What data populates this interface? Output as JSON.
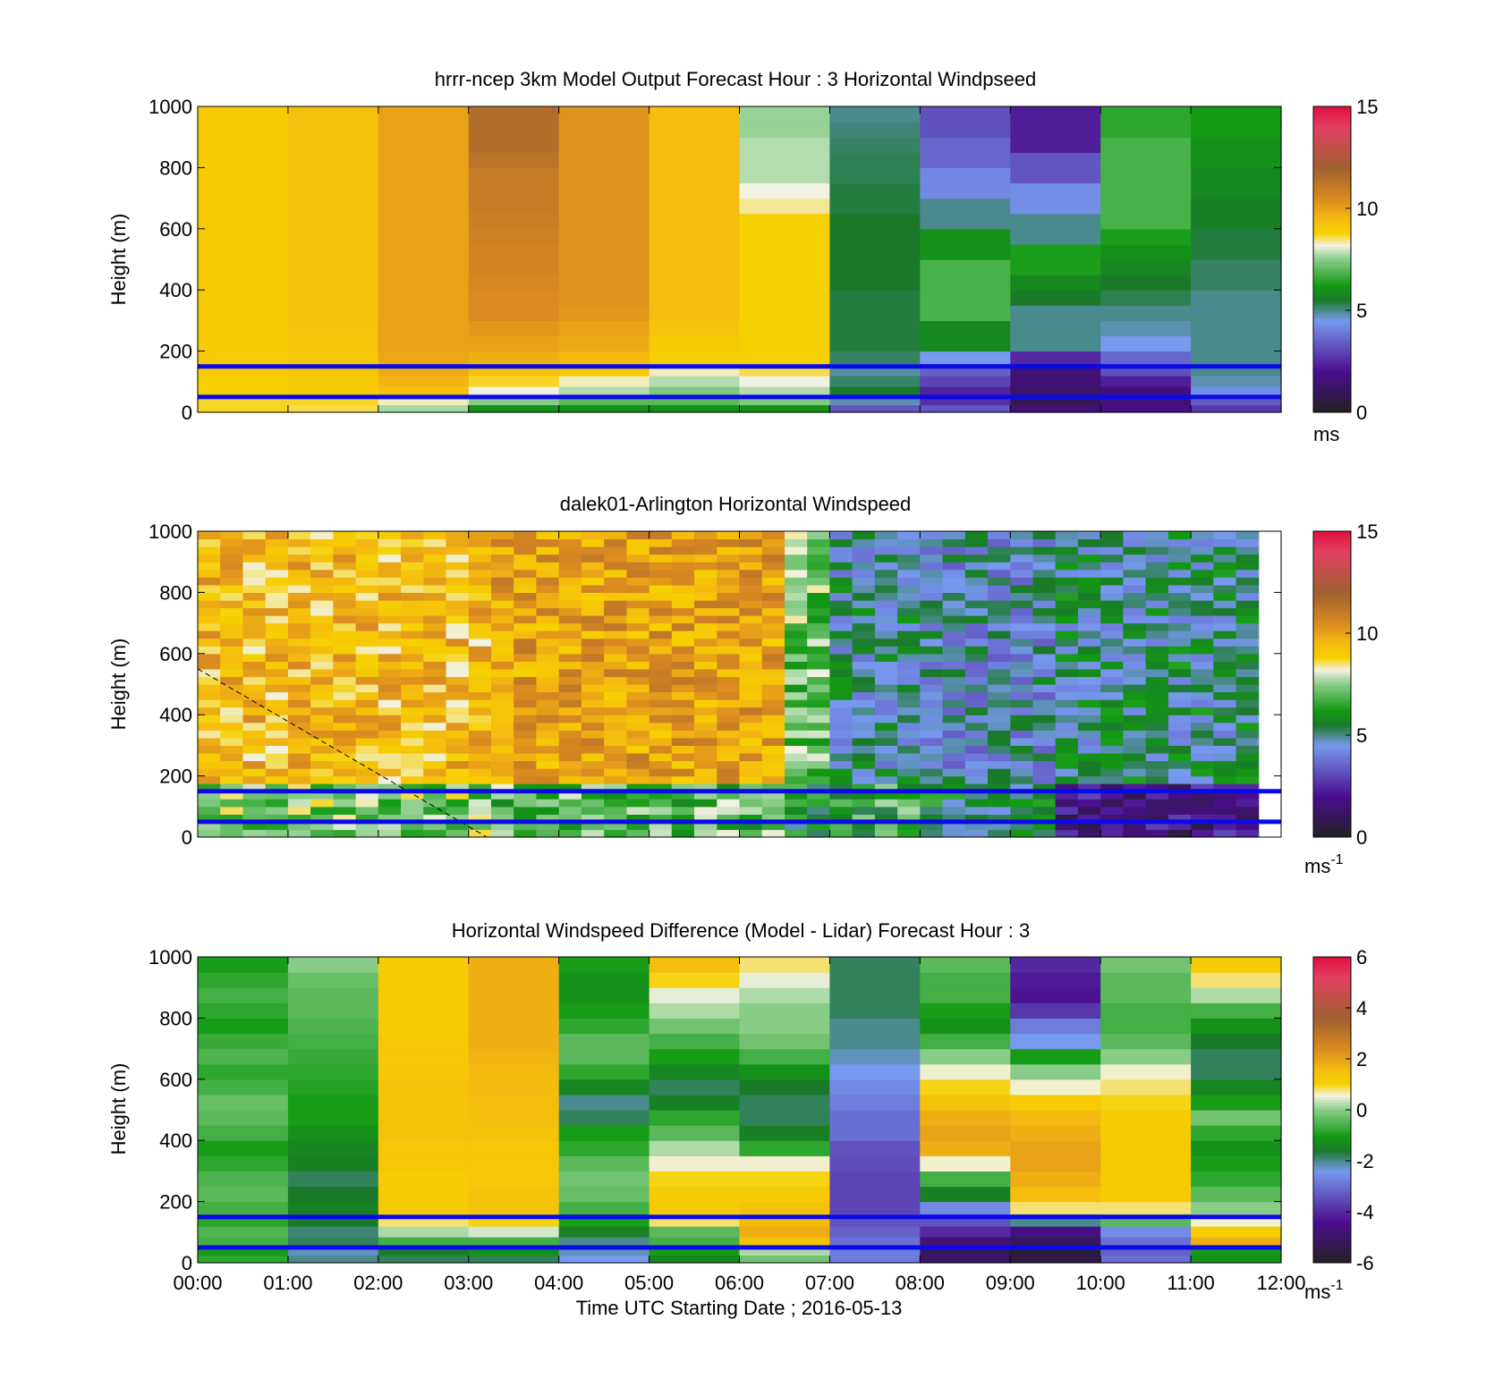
{
  "chart_data": [
    {
      "type": "heatmap",
      "title": "hrrr-ncep 3km Model Output   Forecast Hour : 3 Horizontal Windpseed",
      "ylabel": "Height (m)",
      "xlabel": "",
      "ylim": [
        0,
        1000
      ],
      "yticks": [
        "0",
        "200",
        "400",
        "600",
        "800",
        "1000"
      ],
      "xlim": [
        0,
        12
      ],
      "colorbar": {
        "label": "ms",
        "superscript": "",
        "ticks": [
          "0",
          "5",
          "10",
          "15"
        ],
        "range": [
          0,
          15
        ]
      },
      "colormap": [
        [
          0.0,
          "#222222"
        ],
        [
          0.2,
          "#4b0c90"
        ],
        [
          0.45,
          "#7799ee"
        ],
        [
          0.55,
          "#1a7a2a"
        ],
        [
          0.62,
          "#129a12"
        ],
        [
          0.75,
          "#88cc88"
        ],
        [
          0.82,
          "#f2f2e2"
        ],
        [
          0.88,
          "#f6d000"
        ],
        [
          0.95,
          "#f5ba10"
        ],
        [
          1.05,
          "#d98a20"
        ],
        [
          1.2,
          "#a06030"
        ],
        [
          1.4,
          "#e04060"
        ],
        [
          1.5,
          "#e01040"
        ]
      ],
      "heights": [
        25,
        55,
        85,
        120,
        160,
        200,
        250,
        300,
        350,
        400,
        450,
        500,
        550,
        600,
        650,
        700,
        750,
        800,
        850,
        900,
        950,
        1000
      ],
      "hours": [
        0,
        1,
        2,
        3,
        4,
        5,
        6,
        7,
        8,
        9,
        10,
        11
      ],
      "values": [
        [
          8.7,
          8.7,
          8.8,
          8.8,
          9.0,
          9.0,
          9.0,
          9.0,
          9.0,
          9.0,
          9.0,
          9.0,
          9.0,
          9.0,
          9.0,
          9.0,
          9.0,
          9.0,
          9.0,
          9.0,
          9.0,
          9.0
        ],
        [
          8.6,
          8.7,
          8.9,
          9.0,
          9.1,
          9.1,
          9.2,
          9.2,
          9.3,
          9.3,
          9.3,
          9.3,
          9.3,
          9.3,
          9.3,
          9.3,
          9.3,
          9.3,
          9.3,
          9.3,
          9.3,
          9.3
        ],
        [
          7.7,
          8.3,
          9.3,
          9.6,
          9.8,
          9.9,
          10.0,
          10.0,
          10.0,
          10.0,
          10.0,
          10.0,
          10.0,
          10.0,
          10.0,
          10.0,
          10.0,
          10.0,
          10.0,
          10.0,
          10.0,
          10.0
        ],
        [
          6.0,
          7.5,
          8.2,
          8.7,
          9.2,
          9.7,
          10.0,
          10.2,
          10.5,
          10.5,
          10.6,
          10.7,
          10.7,
          10.8,
          10.9,
          11.0,
          11.0,
          11.0,
          11.3,
          11.5,
          11.5,
          11.5
        ],
        [
          6.0,
          7.0,
          7.8,
          8.3,
          9.0,
          9.5,
          9.8,
          10.0,
          10.2,
          10.3,
          10.3,
          10.3,
          10.3,
          10.3,
          10.3,
          10.3,
          10.3,
          10.3,
          10.3,
          10.3,
          10.3,
          10.3
        ],
        [
          6.0,
          7.0,
          7.4,
          7.8,
          8.3,
          8.8,
          9.0,
          9.2,
          9.4,
          9.4,
          9.4,
          9.4,
          9.4,
          9.4,
          9.4,
          9.4,
          9.4,
          9.4,
          9.4,
          9.4,
          9.4,
          9.4
        ],
        [
          6.0,
          7.4,
          7.8,
          8.2,
          8.6,
          8.8,
          8.8,
          8.8,
          8.8,
          8.8,
          8.8,
          8.8,
          8.8,
          8.8,
          8.8,
          8.4,
          8.2,
          7.8,
          7.8,
          7.8,
          7.6,
          7.6
        ],
        [
          3.3,
          4.8,
          5.5,
          5.2,
          4.9,
          5.2,
          5.4,
          5.4,
          5.4,
          5.4,
          5.5,
          5.5,
          5.5,
          5.5,
          5.5,
          5.4,
          5.4,
          5.3,
          5.3,
          5.2,
          5.1,
          5.0
        ],
        [
          3.3,
          2.6,
          2.4,
          3.0,
          3.5,
          4.5,
          5.8,
          5.8,
          6.8,
          6.8,
          6.8,
          6.8,
          6.0,
          6.0,
          5.0,
          5.0,
          4.2,
          4.2,
          3.6,
          3.6,
          3.2,
          3.2
        ],
        [
          1.5,
          0.9,
          1.2,
          1.5,
          1.5,
          2.5,
          5.0,
          5.0,
          5.0,
          5.5,
          5.8,
          6.3,
          6.3,
          5.0,
          5.0,
          4.3,
          4.3,
          3.3,
          3.3,
          2.3,
          2.3,
          2.3
        ],
        [
          1.8,
          1.5,
          1.6,
          2.3,
          3.2,
          3.6,
          4.5,
          4.8,
          5.0,
          5.3,
          5.5,
          5.8,
          6.0,
          6.3,
          6.8,
          6.8,
          6.8,
          6.8,
          6.8,
          6.8,
          6.5,
          6.5
        ],
        [
          2.8,
          3.4,
          4.3,
          4.8,
          5.0,
          5.0,
          5.0,
          5.0,
          5.0,
          5.0,
          5.2,
          5.2,
          5.4,
          5.4,
          5.6,
          5.6,
          5.8,
          5.8,
          6.0,
          6.0,
          6.2,
          6.2
        ]
      ],
      "reference_lines_m": [
        50,
        150
      ],
      "reference_line_color": "#0a0ae6"
    },
    {
      "type": "heatmap",
      "title": "dalek01-Arlington  Horizontal Windspeed",
      "ylabel": "Height (m)",
      "xlabel": "",
      "ylim": [
        0,
        1000
      ],
      "yticks": [
        "0",
        "200",
        "400",
        "600",
        "800",
        "1000"
      ],
      "xlim": [
        0,
        12
      ],
      "colorbar": {
        "label": "ms",
        "superscript": "-1",
        "ticks": [
          "0",
          "5",
          "10",
          "15"
        ],
        "range": [
          0,
          15
        ]
      },
      "segments": [
        {
          "from_hour": 0.0,
          "to_hour": 3.2,
          "mean_ms": 9.4,
          "low_level_ms": 7.5
        },
        {
          "from_hour": 3.2,
          "to_hour": 6.3,
          "mean_ms": 10.0,
          "low_level_ms": 7.0
        },
        {
          "from_hour": 6.3,
          "to_hour": 7.0,
          "mean_ms": 7.2,
          "low_level_ms": 6.0
        },
        {
          "from_hour": 7.0,
          "to_hour": 8.0,
          "mean_ms": 5.0,
          "low_level_ms": 6.5
        },
        {
          "from_hour": 8.0,
          "to_hour": 9.5,
          "mean_ms": 4.6,
          "low_level_ms": 5.5
        },
        {
          "from_hour": 9.5,
          "to_hour": 11.8,
          "mean_ms": 5.2,
          "low_level_ms": 1.8
        }
      ],
      "data_end_hour": 11.85,
      "dashed_line": {
        "points": [
          [
            0,
            550
          ],
          [
            3.2,
            0
          ]
        ]
      },
      "reference_lines_m": [
        50,
        150
      ],
      "reference_line_color": "#0a0ae6"
    },
    {
      "type": "heatmap",
      "title": "Horizontal Windspeed Difference (Model - Lidar) Forecast Hour : 3",
      "ylabel": "Height (m)",
      "xlabel": "Time UTC  Starting Date ; 2016-05-13",
      "ylim": [
        0,
        1000
      ],
      "yticks": [
        "0",
        "200",
        "400",
        "600",
        "800",
        "1000"
      ],
      "xlim": [
        0,
        12
      ],
      "xticks": [
        "00:00",
        "01:00",
        "02:00",
        "03:00",
        "04:00",
        "05:00",
        "06:00",
        "07:00",
        "08:00",
        "09:00",
        "10:00",
        "11:00",
        "12:00"
      ],
      "colorbar": {
        "label": "ms",
        "superscript": "-1",
        "ticks": [
          "-6",
          "-4",
          "-2",
          "0",
          "2",
          "4",
          "6"
        ],
        "range": [
          -6,
          6
        ]
      },
      "heights": [
        25,
        55,
        85,
        120,
        160,
        200,
        250,
        300,
        350,
        400,
        450,
        500,
        550,
        600,
        650,
        700,
        750,
        800,
        850,
        900,
        950,
        1000
      ],
      "hours": [
        0,
        1,
        2,
        3,
        4,
        5,
        6,
        7,
        8,
        9,
        10,
        11
      ],
      "values": [
        [
          -0.8,
          -1.0,
          -0.6,
          -0.5,
          -0.8,
          -0.6,
          -0.4,
          -0.5,
          -0.8,
          -1.0,
          -0.6,
          -0.4,
          -0.3,
          -0.6,
          -0.8,
          -0.5,
          -0.7,
          -1.0,
          -0.8,
          -0.6,
          -0.8,
          -1.0
        ],
        [
          -2.0,
          -2.2,
          -1.8,
          -1.9,
          -1.6,
          -1.5,
          -1.6,
          -1.8,
          -1.5,
          -1.4,
          -1.2,
          -1.0,
          -1.0,
          -0.9,
          -0.8,
          -0.7,
          -0.6,
          -0.5,
          -0.4,
          -0.4,
          -0.3,
          0.0
        ],
        [
          -1.8,
          -1.5,
          -0.6,
          0.2,
          0.8,
          1.2,
          1.2,
          1.2,
          1.3,
          1.3,
          1.4,
          1.4,
          1.4,
          1.4,
          1.3,
          1.3,
          1.3,
          1.2,
          1.2,
          1.2,
          1.2,
          1.2
        ],
        [
          -1.8,
          -1.2,
          -0.6,
          0.4,
          1.0,
          1.4,
          1.4,
          1.3,
          1.3,
          1.3,
          1.4,
          1.5,
          1.5,
          1.6,
          1.6,
          1.7,
          1.8,
          1.8,
          1.8,
          1.8,
          1.8,
          1.8
        ],
        [
          -2.4,
          -2.2,
          -2.0,
          -1.5,
          -1.0,
          -0.6,
          -0.3,
          -0.2,
          -0.4,
          -0.8,
          -1.0,
          -1.8,
          -2.0,
          -1.4,
          -0.8,
          -0.4,
          -0.4,
          -0.8,
          -1.0,
          -1.2,
          -1.2,
          -1.0
        ],
        [
          -1.4,
          -1.0,
          -0.6,
          -0.4,
          0.8,
          1.2,
          1.2,
          1.0,
          0.6,
          0.2,
          -0.4,
          -0.8,
          -1.5,
          -1.8,
          -1.4,
          -1.0,
          -0.6,
          -0.2,
          0.2,
          0.5,
          1.0,
          1.5
        ],
        [
          -0.2,
          0.2,
          1.4,
          1.8,
          1.6,
          1.4,
          1.2,
          1.0,
          0.6,
          -0.8,
          -1.5,
          -1.8,
          -1.8,
          -1.6,
          -1.2,
          -0.6,
          -0.2,
          0.0,
          0.0,
          0.2,
          0.5,
          0.8
        ],
        [
          -2.8,
          -2.8,
          -3.0,
          -3.2,
          -3.4,
          -3.6,
          -3.6,
          -3.6,
          -3.5,
          -3.4,
          -3.0,
          -3.0,
          -2.8,
          -2.6,
          -2.4,
          -2.2,
          -2.0,
          -2.0,
          -1.8,
          -1.8,
          -1.8,
          -1.8
        ],
        [
          -5.0,
          -5.2,
          -4.8,
          -4.0,
          -3.4,
          -2.6,
          -1.5,
          -0.6,
          0.6,
          1.8,
          2.0,
          1.8,
          1.4,
          1.0,
          0.6,
          0.0,
          -0.6,
          -1.2,
          -1.0,
          -0.6,
          -0.6,
          -0.4
        ],
        [
          -5.5,
          -5.6,
          -5.2,
          -4.6,
          -2.0,
          0.8,
          1.5,
          1.8,
          2.0,
          2.0,
          1.8,
          1.6,
          1.2,
          0.6,
          0.0,
          -1.0,
          -2.4,
          -2.8,
          -3.8,
          -4.3,
          -4.2,
          -4.0
        ],
        [
          -3.0,
          -3.2,
          -3.0,
          -2.6,
          -0.4,
          0.8,
          1.2,
          1.2,
          1.2,
          1.2,
          1.2,
          1.2,
          1.0,
          0.8,
          0.6,
          0.0,
          -0.4,
          -0.6,
          -0.6,
          -0.4,
          -0.4,
          -0.2
        ],
        [
          -1.2,
          -1.0,
          1.8,
          1.2,
          0.6,
          0.0,
          -0.4,
          -0.8,
          -1.0,
          -1.2,
          -0.8,
          -0.2,
          -1.0,
          -1.4,
          -1.8,
          -1.8,
          -1.6,
          -1.2,
          -0.6,
          0.2,
          0.8,
          1.2
        ]
      ],
      "reference_lines_m": [
        50,
        150
      ],
      "reference_line_color": "#0a0ae6"
    }
  ]
}
